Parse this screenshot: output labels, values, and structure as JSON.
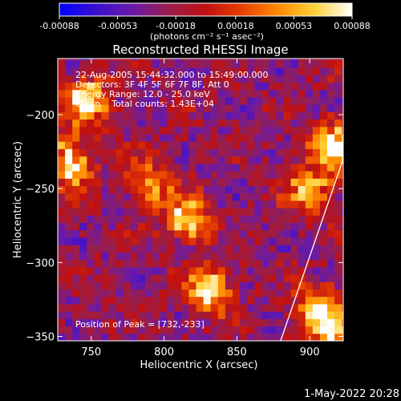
{
  "colorbar": {
    "ticks": [
      "-0.00088",
      "-0.00053",
      "-0.00018",
      "0.00018",
      "0.00053",
      "0.00088"
    ],
    "tick_values": [
      -0.00088,
      -0.00053,
      -0.00018,
      0.00018,
      0.00053,
      0.00088
    ],
    "range": [
      -0.00088,
      0.00088
    ],
    "unit_label": "(photons cm⁻² s⁻¹ asec⁻²)",
    "palette": [
      "#0000ff",
      "#3a10d0",
      "#6a1aa8",
      "#9a1e4a",
      "#c01010",
      "#e84000",
      "#ff8c00",
      "#ffd23a",
      "#ffffff"
    ]
  },
  "chart_data": {
    "type": "heatmap",
    "title": "Reconstructed RHESSI Image",
    "xlabel": "Heliocentric X (arcsec)",
    "ylabel": "Heliocentric Y (arcsec)",
    "xlim": [
      727,
      923
    ],
    "ylim": [
      -353,
      -162
    ],
    "xticks": [
      750,
      800,
      850,
      900
    ],
    "yticks": [
      -200,
      -250,
      -300,
      -350
    ],
    "info_lines": [
      "22-Aug-2005 15:44:32.000 to 15:49:00.000",
      "Detectors: 3F 4F 5F 6F 7F 8F, Att 0",
      "Energy Range: 12.0 - 25.0 keV",
      "Clean    Total counts: 1.43E+04"
    ],
    "peak_label": "Position of Peak = [732,-233]",
    "peak": [
      732,
      -233
    ],
    "limb_line": [
      [
        880,
        -353
      ],
      [
        923,
        -230
      ]
    ],
    "bright_sources": [
      {
        "x": 735,
        "y": -232,
        "peak": 0.00088
      },
      {
        "x": 747,
        "y": -190,
        "peak": 0.00075
      },
      {
        "x": 917,
        "y": -220,
        "peak": 0.00085
      },
      {
        "x": 900,
        "y": -250,
        "peak": 0.0006
      },
      {
        "x": 816,
        "y": -270,
        "peak": 0.0007
      },
      {
        "x": 830,
        "y": -318,
        "peak": 0.0007
      },
      {
        "x": 790,
        "y": -248,
        "peak": 0.0005
      },
      {
        "x": 905,
        "y": -330,
        "peak": 0.0005
      },
      {
        "x": 915,
        "y": -345,
        "peak": 0.0006
      }
    ]
  },
  "footer": {
    "timestamp": "1-May-2022 20:28"
  }
}
